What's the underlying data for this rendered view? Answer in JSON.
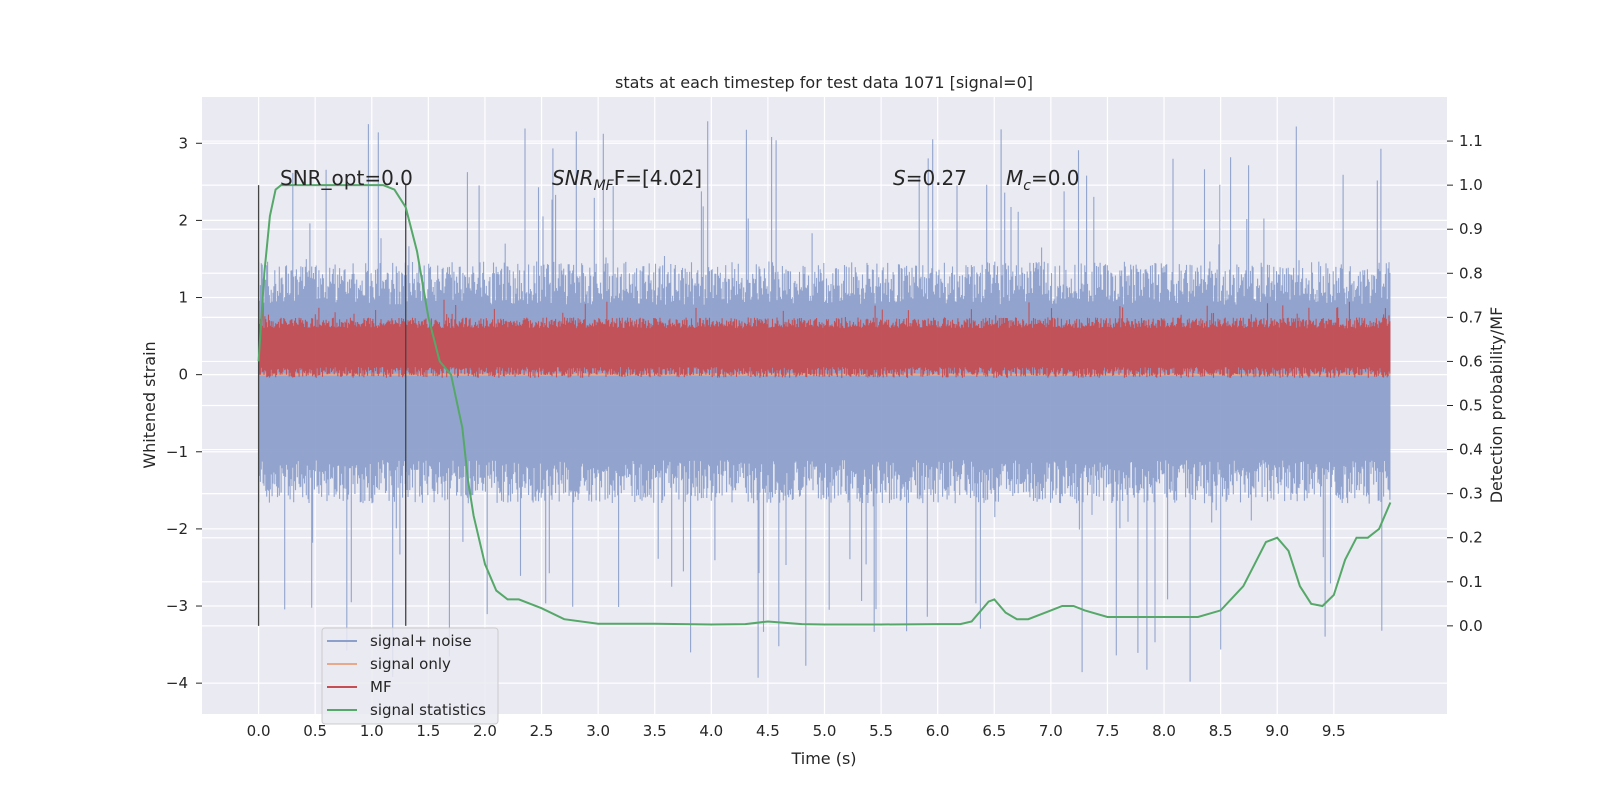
{
  "chart_data": {
    "type": "line",
    "title": "stats at each timestep for test data 1071 [signal=0]",
    "xlabel": "Time (s)",
    "ylabel_left": "Whitened strain",
    "ylabel_right": "Detection probability/MF",
    "xlim": [
      -0.5,
      10.5
    ],
    "ylim_left": [
      -4.4,
      3.6
    ],
    "ylim_right": [
      -0.2,
      1.2
    ],
    "x_ticks": [
      "0.0",
      "0.5",
      "1.0",
      "1.5",
      "2.0",
      "2.5",
      "3.0",
      "3.5",
      "4.0",
      "4.5",
      "5.0",
      "5.5",
      "6.0",
      "6.5",
      "7.0",
      "7.5",
      "8.0",
      "8.5",
      "9.0",
      "9.5"
    ],
    "y_ticks_left": [
      "3",
      "2",
      "1",
      "0",
      "−1",
      "−2",
      "−3",
      "−4"
    ],
    "y_ticks_right": [
      "1.1",
      "1.0",
      "0.9",
      "0.8",
      "0.7",
      "0.6",
      "0.5",
      "0.4",
      "0.3",
      "0.2",
      "0.1",
      "0.0"
    ],
    "grid": true,
    "legend_position": "lower-left",
    "series": [
      {
        "name": "signal+ noise",
        "color": "#8da0cb",
        "axis": "left",
        "kind": "noise",
        "x_range": [
          0.0,
          10.0
        ],
        "typical_range": [
          -1.5,
          1.3
        ],
        "extreme_range": [
          -4.0,
          3.3
        ]
      },
      {
        "name": "signal only",
        "color": "#e8a98a",
        "axis": "left",
        "kind": "flat",
        "x_range": [
          0.0,
          10.0
        ],
        "y": 0.0
      },
      {
        "name": "MF",
        "color": "#c44e52",
        "axis": "left",
        "kind": "noise",
        "x_range": [
          0.0,
          10.0
        ],
        "typical_range": [
          0.0,
          0.7
        ],
        "extreme_range": [
          0.0,
          1.0
        ]
      },
      {
        "name": "signal statistics",
        "color": "#55a868",
        "axis": "right",
        "kind": "line",
        "x": [
          0.0,
          0.05,
          0.1,
          0.15,
          0.2,
          0.3,
          0.5,
          0.8,
          1.0,
          1.1,
          1.2,
          1.3,
          1.4,
          1.5,
          1.6,
          1.7,
          1.8,
          1.85,
          1.9,
          2.0,
          2.1,
          2.2,
          2.3,
          2.5,
          2.7,
          3.0,
          3.5,
          4.0,
          4.3,
          4.5,
          4.8,
          5.0,
          5.5,
          6.0,
          6.2,
          6.3,
          6.4,
          6.45,
          6.5,
          6.6,
          6.7,
          6.8,
          7.0,
          7.1,
          7.2,
          7.3,
          7.5,
          8.0,
          8.3,
          8.5,
          8.7,
          8.8,
          8.9,
          9.0,
          9.1,
          9.2,
          9.3,
          9.4,
          9.5,
          9.6,
          9.7,
          9.8,
          9.9,
          10.0
        ],
        "y": [
          0.6,
          0.8,
          0.93,
          0.99,
          1.0,
          1.0,
          1.0,
          1.0,
          1.0,
          1.0,
          0.99,
          0.95,
          0.85,
          0.7,
          0.6,
          0.57,
          0.45,
          0.33,
          0.25,
          0.14,
          0.08,
          0.06,
          0.06,
          0.04,
          0.015,
          0.005,
          0.005,
          0.003,
          0.004,
          0.01,
          0.004,
          0.003,
          0.003,
          0.004,
          0.004,
          0.01,
          0.04,
          0.055,
          0.06,
          0.03,
          0.015,
          0.015,
          0.035,
          0.045,
          0.045,
          0.035,
          0.02,
          0.02,
          0.02,
          0.035,
          0.09,
          0.14,
          0.19,
          0.2,
          0.17,
          0.09,
          0.05,
          0.045,
          0.07,
          0.15,
          0.2,
          0.2,
          0.22,
          0.28
        ]
      }
    ],
    "vertical_lines": [
      0.0,
      1.3
    ],
    "annotations": {
      "snr_opt": "SNR_opt=0.0",
      "snr_mf_main": "SNR",
      "snr_mf_sub": "MF",
      "snr_mf_tail": "F=[4.02]",
      "s_main": "S",
      "s_tail": "=0.27",
      "mc_main": "M",
      "mc_sub": "c",
      "mc_tail": "=0.0"
    }
  }
}
